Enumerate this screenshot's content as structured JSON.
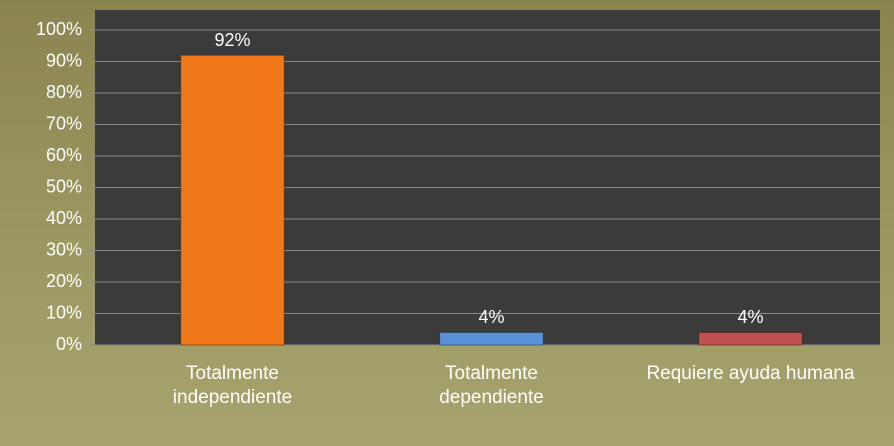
{
  "chart_data": {
    "type": "bar",
    "categories": [
      "Totalmente independiente",
      "Totalmente dependiente",
      "Requiere ayuda humana"
    ],
    "values": [
      92,
      4,
      4
    ],
    "value_labels": [
      "92%",
      "4%",
      "4%"
    ],
    "colors": [
      "#f07818",
      "#5b8fd6",
      "#c0504d"
    ],
    "ylim": [
      0,
      100
    ],
    "yticks": [
      {
        "value": 0,
        "label": "0%"
      },
      {
        "value": 10,
        "label": "10%"
      },
      {
        "value": 20,
        "label": "20%"
      },
      {
        "value": 30,
        "label": "30%"
      },
      {
        "value": 40,
        "label": "40%"
      },
      {
        "value": 50,
        "label": "50%"
      },
      {
        "value": 60,
        "label": "60%"
      },
      {
        "value": 70,
        "label": "70%"
      },
      {
        "value": 80,
        "label": "80%"
      },
      {
        "value": 90,
        "label": "90%"
      },
      {
        "value": 100,
        "label": "100%"
      }
    ],
    "grid": true
  }
}
